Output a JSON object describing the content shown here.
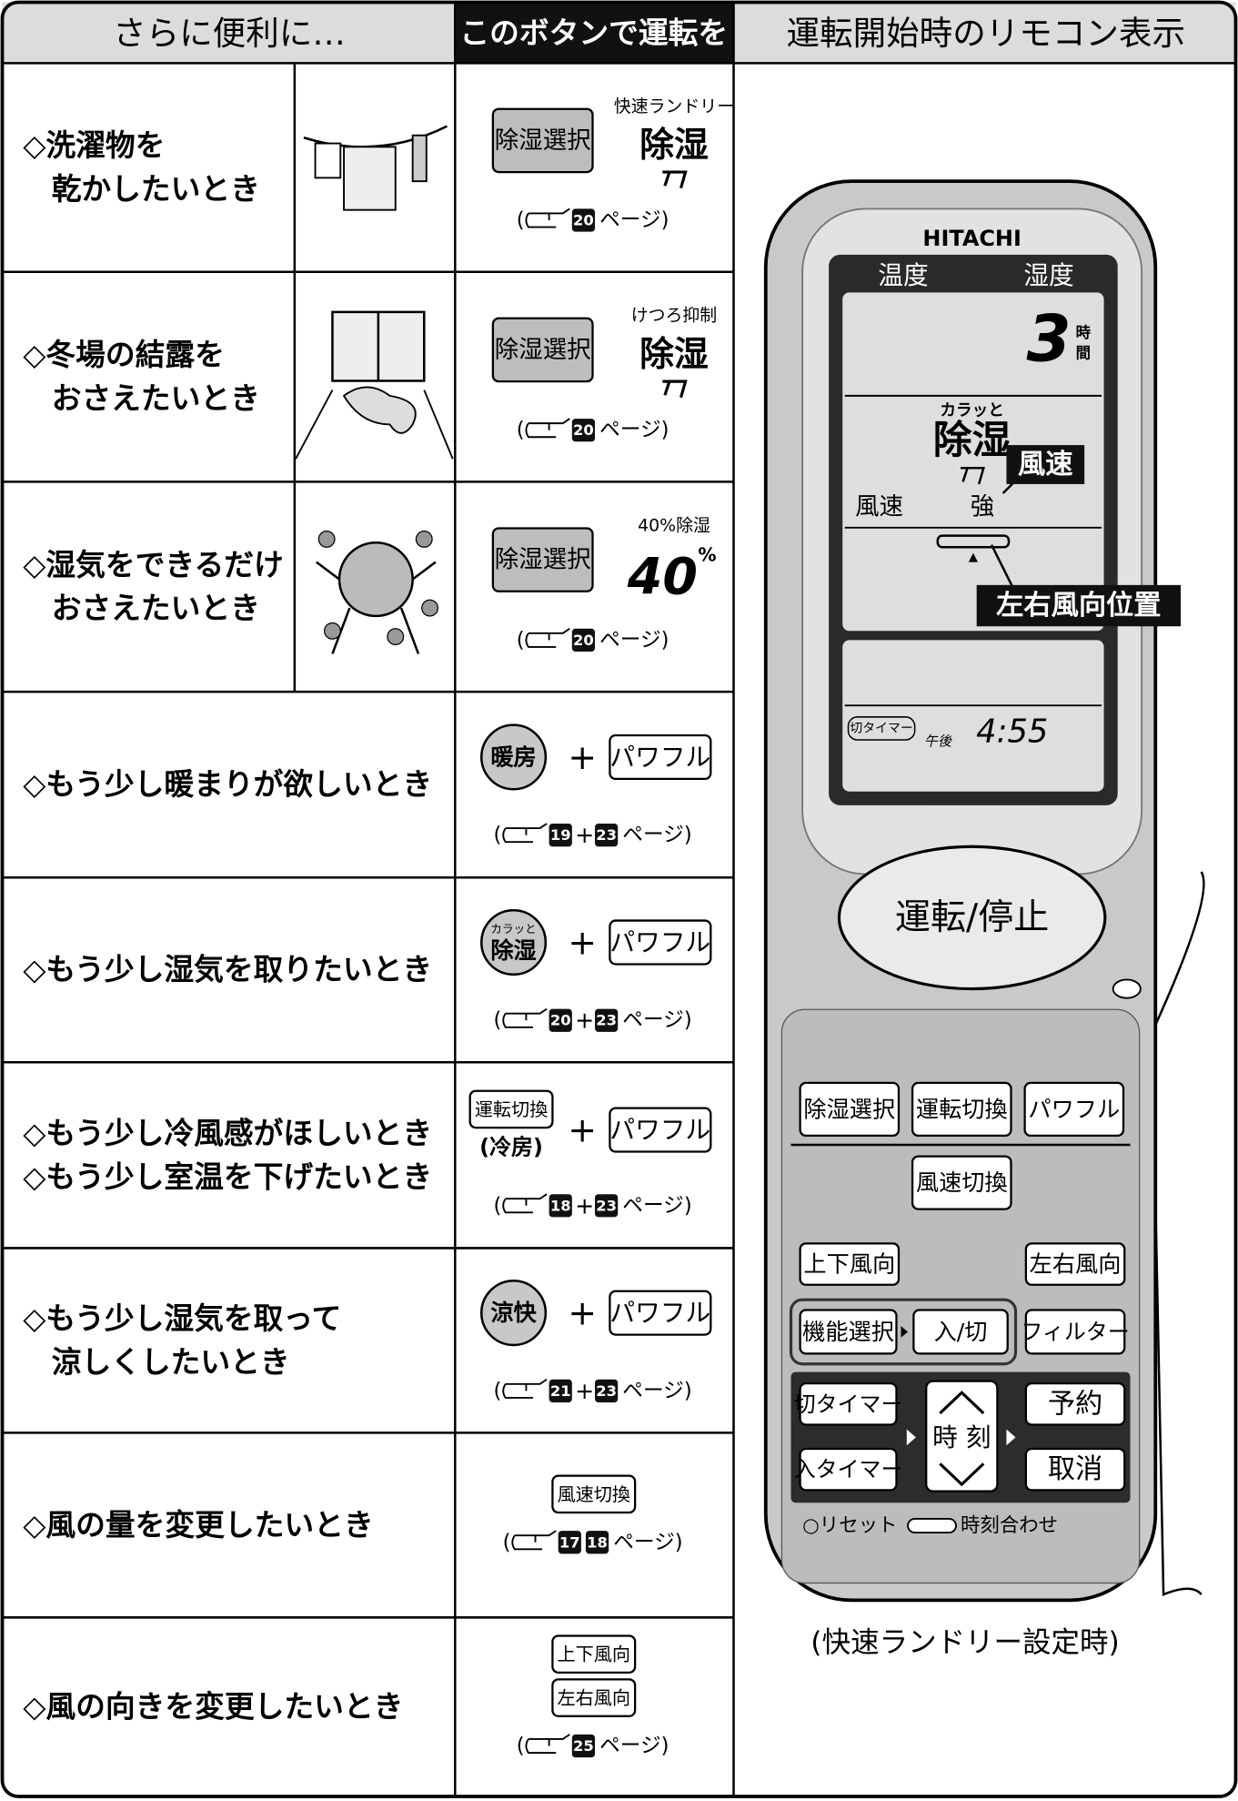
{
  "header": {
    "columns": [
      "さらに便利に…",
      "このボタンで運転を",
      "運転開始時のリモコン表示"
    ]
  },
  "rows": [
    {
      "situation": [
        "◇洗濯物を",
        "乾かしたいとき"
      ],
      "buttons": [
        "除湿選択"
      ],
      "mode": {
        "caption": "快速ランドリー",
        "label": "除湿"
      },
      "ref": {
        "open": "(",
        "pages": [
          "20"
        ],
        "close": "ページ)"
      }
    },
    {
      "situation": [
        "◇冬場の結露を",
        "おさえたいとき"
      ],
      "buttons": [
        "除湿選択"
      ],
      "mode": {
        "caption": "けつろ抑制",
        "label": "除湿"
      },
      "ref": {
        "open": "(",
        "pages": [
          "20"
        ],
        "close": "ページ)"
      }
    },
    {
      "situation": [
        "◇湿気をできるだけ",
        "おさえたいとき"
      ],
      "buttons": [
        "除湿選択"
      ],
      "mode": {
        "caption": "40%除湿",
        "label": "40",
        "unit": "%"
      },
      "ref": {
        "open": "(",
        "pages": [
          "20"
        ],
        "close": "ページ)"
      }
    },
    {
      "situation": [
        "◇もう少し暖まりが欲しいとき"
      ],
      "round_button": {
        "label": "暖房"
      },
      "plus": "+",
      "buttons": [
        "パワフル"
      ],
      "ref": {
        "open": "(",
        "pages": [
          "19",
          "23"
        ],
        "joiner": "+",
        "close": "ページ)"
      }
    },
    {
      "situation": [
        "◇もう少し湿気を取りたいとき"
      ],
      "round_button": {
        "small": "カラッと",
        "label": "除湿"
      },
      "plus": "+",
      "buttons": [
        "パワフル"
      ],
      "ref": {
        "open": "(",
        "pages": [
          "20",
          "23"
        ],
        "joiner": "+",
        "close": "ページ)"
      }
    },
    {
      "situation": [
        "◇もう少し冷風感がほしいとき",
        "◇もう少し室温を下げたいとき"
      ],
      "first_button": "運転切換",
      "note": "(冷房)",
      "plus": "+",
      "buttons": [
        "パワフル"
      ],
      "ref": {
        "open": "(",
        "pages": [
          "18",
          "23"
        ],
        "joiner": "+",
        "close": "ページ)"
      }
    },
    {
      "situation": [
        "◇もう少し湿気を取って",
        "涼しくしたいとき"
      ],
      "round_button": {
        "label": "涼快"
      },
      "plus": "+",
      "buttons": [
        "パワフル"
      ],
      "ref": {
        "open": "(",
        "pages": [
          "21",
          "23"
        ],
        "joiner": "+",
        "close": "ページ)"
      }
    },
    {
      "situation": [
        "◇風の量を変更したいとき"
      ],
      "buttons": [
        "風速切換"
      ],
      "ref": {
        "open": "(",
        "pages": [
          "17",
          "18"
        ],
        "close": "ページ)"
      }
    },
    {
      "situation": [
        "◇風の向きを変更したいとき"
      ],
      "buttons": [
        "上下風向",
        "左右風向"
      ],
      "ref": {
        "open": "(",
        "pages": [
          "25"
        ],
        "close": "ページ)"
      }
    }
  ],
  "remote": {
    "brand": "HITACHI",
    "display": {
      "temp": "温度",
      "humidity": "湿度",
      "hours": "3",
      "hours_unit": [
        "時",
        "間"
      ],
      "mode_small": "カラッと",
      "mode": "除湿",
      "fan_label": "風速",
      "fan_level": "強",
      "timer": "切タイマー",
      "ampm": "午後",
      "time": "4:55"
    },
    "callouts": [
      "風速",
      "左右風向位置"
    ],
    "power": "運転/停止",
    "buttons": {
      "row1": [
        "除湿選択",
        "運転切換",
        "パワフル"
      ],
      "fan": "風速切換",
      "updown": "上下風向",
      "leftright": "左右風向",
      "function": "機能選択",
      "onoff": "入/切",
      "filter": "フィルター",
      "off_timer": "切タイマー",
      "on_timer": "入タイマー",
      "clock": "時 刻",
      "reserve": "予約",
      "cancel": "取消"
    },
    "reset": "○リセット",
    "clock_set": "時刻合わせ"
  },
  "caption": "(快速ランドリー設定時)"
}
